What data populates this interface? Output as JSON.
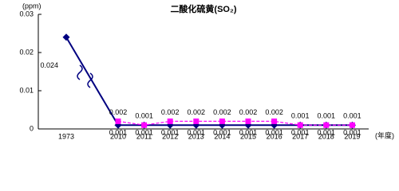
{
  "chart_data": {
    "type": "line",
    "title": "二酸化硫黄(SO₂)",
    "y_unit": "(ppm)",
    "x_unit": "(年度)",
    "categories": [
      "1973",
      "2010",
      "2011",
      "2012",
      "2013",
      "2014",
      "2015",
      "2016",
      "2017",
      "2018",
      "2019"
    ],
    "series": [
      {
        "color": "#000080",
        "marker": "diamond",
        "dash": false,
        "label_position": "below",
        "values": [
          0.024,
          0.001,
          0.001,
          0.001,
          0.001,
          0.001,
          0.001,
          0.001,
          0.001,
          0.001,
          0.001
        ]
      },
      {
        "color": "#ff00ff",
        "marker": "square",
        "dash": true,
        "label_position": "above",
        "values": [
          null,
          0.002,
          0.001,
          0.002,
          0.002,
          0.002,
          0.002,
          0.002,
          0.001,
          0.001,
          0.001
        ]
      }
    ],
    "ylim": [
      0,
      0.03
    ],
    "yticks": [
      0,
      0.01,
      0.02,
      0.03
    ],
    "grid": false
  }
}
